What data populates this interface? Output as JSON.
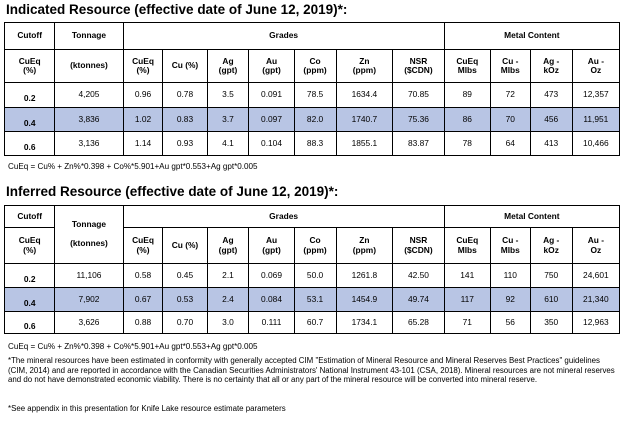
{
  "headers": {
    "cutoff": "Cutoff",
    "tonnage": "Tonnage",
    "grades": "Grades",
    "metal_content": "Metal Content",
    "cueq_pct": [
      "CuEq",
      "(%)"
    ],
    "ktonnes": "(ktonnes)",
    "columns": [
      [
        "CuEq",
        "(%)"
      ],
      [
        "Cu (%)"
      ],
      [
        "Ag",
        "(gpt)"
      ],
      [
        "Au",
        "(gpt)"
      ],
      [
        "Co",
        "(ppm)"
      ],
      [
        "Zn",
        "(ppm)"
      ],
      [
        "NSR",
        "($CDN)"
      ],
      [
        "CuEq",
        "Mlbs"
      ],
      [
        "Cu -",
        "Mlbs"
      ],
      [
        "Ag -",
        "kOz"
      ],
      [
        "Au -",
        "Oz"
      ]
    ]
  },
  "indicated": {
    "title": "Indicated Resource (effective date of June 12, 2019)*:",
    "rows": [
      {
        "cutoff": "0.2",
        "tonnage": "4,205",
        "cueq": "0.96",
        "cu": "0.78",
        "ag": "3.5",
        "au": "0.091",
        "co": "78.5",
        "zn": "1634.4",
        "nsr": "70.85",
        "cueq_mlbs": "89",
        "cu_mlbs": "72",
        "ag_koz": "473",
        "au_oz": "12,357"
      },
      {
        "cutoff": "0.4",
        "tonnage": "3,836",
        "cueq": "1.02",
        "cu": "0.83",
        "ag": "3.7",
        "au": "0.097",
        "co": "82.0",
        "zn": "1740.7",
        "nsr": "75.36",
        "cueq_mlbs": "86",
        "cu_mlbs": "70",
        "ag_koz": "456",
        "au_oz": "11,951"
      },
      {
        "cutoff": "0.6",
        "tonnage": "3,136",
        "cueq": "1.14",
        "cu": "0.93",
        "ag": "4.1",
        "au": "0.104",
        "co": "88.3",
        "zn": "1855.1",
        "nsr": "83.87",
        "cueq_mlbs": "78",
        "cu_mlbs": "64",
        "ag_koz": "413",
        "au_oz": "10,466"
      }
    ],
    "formula": "CuEq = Cu% + Zn%*0.398 + Co%*5.901+Au gpt*0.553+Ag gpt*0.005"
  },
  "inferred": {
    "title": "Inferred Resource (effective date of June 12, 2019)*:",
    "rows": [
      {
        "cutoff": "0.2",
        "tonnage": "11,106",
        "cueq": "0.58",
        "cu": "0.45",
        "ag": "2.1",
        "au": "0.069",
        "co": "50.0",
        "zn": "1261.8",
        "nsr": "42.50",
        "cueq_mlbs": "141",
        "cu_mlbs": "110",
        "ag_koz": "750",
        "au_oz": "24,601"
      },
      {
        "cutoff": "0.4",
        "tonnage": "7,902",
        "cueq": "0.67",
        "cu": "0.53",
        "ag": "2.4",
        "au": "0.084",
        "co": "53.1",
        "zn": "1454.9",
        "nsr": "49.74",
        "cueq_mlbs": "117",
        "cu_mlbs": "92",
        "ag_koz": "610",
        "au_oz": "21,340"
      },
      {
        "cutoff": "0.6",
        "tonnage": "3,626",
        "cueq": "0.88",
        "cu": "0.70",
        "ag": "3.0",
        "au": "0.111",
        "co": "60.7",
        "zn": "1734.1",
        "nsr": "65.28",
        "cueq_mlbs": "71",
        "cu_mlbs": "56",
        "ag_koz": "350",
        "au_oz": "12,963"
      }
    ],
    "formula": "CuEq = Cu% + Zn%*0.398 + Co%*5.901+Au gpt*0.553+Ag gpt*0.005"
  },
  "highlight_color": "#b8c5e4",
  "footnote1": "*The mineral resources have been estimated in conformity with generally accepted CIM \"Estimation of Mineral Resource and Mineral Reserves Best Practices\" guidelines (CIM, 2014) and are reported in accordance with the Canadian Securities Administrators' National Instrument 43-101 (CSA, 2018).  Mineral resources are not mineral reserves and do not have demonstrated economic viability. There is no certainty that all or any part of the mineral resource will be converted into mineral reserve.",
  "footnote2": "*See appendix in this presentation for Knife Lake resource estimate parameters"
}
